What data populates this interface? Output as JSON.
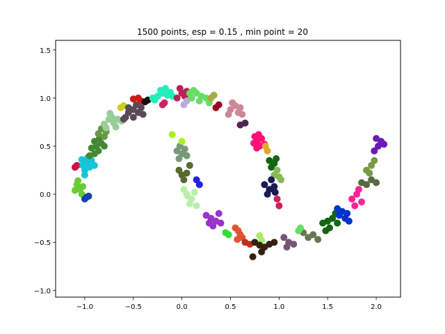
{
  "chart_data": {
    "type": "scatter",
    "title": "1500 points, esp = 0.15 , min point = 20",
    "xlabel": "",
    "ylabel": "",
    "xlim": [
      -1.3,
      2.25
    ],
    "ylim": [
      -1.07,
      1.6
    ],
    "xticks": [
      -1.0,
      -0.5,
      0.0,
      0.5,
      1.0,
      1.5,
      2.0
    ],
    "yticks": [
      -1.0,
      -0.5,
      0.0,
      0.5,
      1.0,
      1.5
    ],
    "xtick_labels": [
      "−1.0",
      "−0.5",
      "0.0",
      "0.5",
      "1.0",
      "1.5",
      "2.0"
    ],
    "ytick_labels": [
      "−1.0",
      "−0.5",
      "0.0",
      "0.5",
      "1.0",
      "1.5"
    ],
    "grid": false,
    "legend": "none",
    "clusters": [
      {
        "color": "#66cc33",
        "points": [
          [
            -1.1,
            0.04
          ],
          [
            -1.08,
            0.1
          ],
          [
            -1.05,
            0.05
          ],
          [
            -1.03,
            0.0
          ],
          [
            -1.07,
            0.14
          ],
          [
            -1.02,
            0.08
          ]
        ]
      },
      {
        "color": "#1144aa",
        "points": [
          [
            -1.0,
            -0.05
          ],
          [
            -0.98,
            -0.03
          ],
          [
            -0.96,
            -0.02
          ]
        ]
      },
      {
        "color": "#cc1144",
        "points": [
          [
            -1.1,
            0.28
          ],
          [
            -1.08,
            0.3
          ]
        ]
      },
      {
        "color": "#17c4d8",
        "points": [
          [
            -1.02,
            0.3
          ],
          [
            -1.0,
            0.25
          ],
          [
            -0.98,
            0.33
          ],
          [
            -0.95,
            0.28
          ],
          [
            -1.0,
            0.2
          ],
          [
            -0.93,
            0.35
          ],
          [
            -0.97,
            0.38
          ],
          [
            -1.03,
            0.36
          ],
          [
            -0.9,
            0.3
          ]
        ]
      },
      {
        "color": "#448833",
        "points": [
          [
            -0.93,
            0.48
          ],
          [
            -0.9,
            0.55
          ],
          [
            -0.88,
            0.5
          ],
          [
            -0.85,
            0.58
          ],
          [
            -0.83,
            0.53
          ],
          [
            -0.86,
            0.45
          ],
          [
            -0.9,
            0.42
          ],
          [
            -0.8,
            0.5
          ],
          [
            -0.95,
            0.4
          ]
        ]
      },
      {
        "color": "#669944",
        "points": [
          [
            -0.86,
            0.63
          ],
          [
            -0.8,
            0.6
          ],
          [
            -0.78,
            0.65
          ],
          [
            -0.83,
            0.68
          ]
        ]
      },
      {
        "color": "#99cc99",
        "points": [
          [
            -0.8,
            0.73
          ],
          [
            -0.75,
            0.78
          ],
          [
            -0.7,
            0.74
          ],
          [
            -0.72,
            0.8
          ],
          [
            -0.66,
            0.78
          ],
          [
            -0.78,
            0.69
          ],
          [
            -0.68,
            0.7
          ],
          [
            -0.74,
            0.84
          ],
          [
            -0.62,
            0.76
          ]
        ]
      },
      {
        "color": "#cccc22",
        "points": [
          [
            -0.63,
            0.9
          ],
          [
            -0.6,
            0.92
          ]
        ]
      },
      {
        "color": "#5a4a55",
        "points": [
          [
            -0.58,
            0.8
          ],
          [
            -0.55,
            0.85
          ],
          [
            -0.5,
            0.88
          ],
          [
            -0.45,
            0.85
          ],
          [
            -0.5,
            0.8
          ],
          [
            -0.42,
            0.9
          ],
          [
            -0.55,
            0.9
          ],
          [
            -0.47,
            0.93
          ],
          [
            -0.4,
            0.83
          ],
          [
            -0.6,
            0.78
          ]
        ]
      },
      {
        "color": "#cc1a1a",
        "points": [
          [
            -0.5,
            0.99
          ],
          [
            -0.45,
            1.0
          ],
          [
            -0.42,
            0.97
          ]
        ]
      },
      {
        "color": "#111111",
        "points": [
          [
            -0.38,
            0.96
          ],
          [
            -0.35,
            0.98
          ]
        ]
      },
      {
        "color": "#cc2266",
        "points": [
          [
            -0.2,
            0.93
          ],
          [
            -0.18,
            0.95
          ]
        ]
      },
      {
        "color": "#22eebb",
        "points": [
          [
            -0.28,
            0.98
          ],
          [
            -0.25,
            1.02
          ],
          [
            -0.2,
            1.05
          ],
          [
            -0.15,
            1.03
          ],
          [
            -0.22,
            1.08
          ],
          [
            -0.17,
            1.1
          ],
          [
            -0.12,
            1.06
          ],
          [
            -0.3,
            1.0
          ],
          [
            -0.1,
            1.02
          ]
        ]
      },
      {
        "color": "#bb2255",
        "points": [
          [
            -0.05,
            1.0
          ],
          [
            0.0,
            1.05
          ],
          [
            0.03,
            1.02
          ],
          [
            -0.02,
            1.1
          ],
          [
            0.05,
            1.07
          ]
        ]
      },
      {
        "color": "#bbaadd",
        "points": [
          [
            0.02,
            0.93
          ],
          [
            0.05,
            0.97
          ]
        ]
      },
      {
        "color": "#66dd66",
        "points": [
          [
            0.1,
            1.0
          ],
          [
            0.15,
            1.05
          ],
          [
            0.2,
            1.02
          ],
          [
            0.25,
            1.0
          ],
          [
            0.18,
            0.97
          ],
          [
            0.12,
            1.08
          ],
          [
            0.28,
            0.95
          ],
          [
            0.08,
            1.05
          ]
        ]
      },
      {
        "color": "#990022",
        "points": [
          [
            0.35,
            0.9
          ],
          [
            0.38,
            0.93
          ]
        ]
      },
      {
        "color": "#aaaa44",
        "points": [
          [
            0.3,
            1.0
          ],
          [
            0.33,
            1.03
          ]
        ]
      },
      {
        "color": "#cc8899",
        "points": [
          [
            0.5,
            0.88
          ],
          [
            0.55,
            0.92
          ],
          [
            0.6,
            0.9
          ],
          [
            0.58,
            0.85
          ],
          [
            0.52,
            0.95
          ],
          [
            0.62,
            0.83
          ],
          [
            0.48,
            0.83
          ]
        ]
      },
      {
        "color": "#552255",
        "points": [
          [
            0.6,
            0.72
          ],
          [
            0.65,
            0.74
          ]
        ]
      },
      {
        "color": "#ff1177",
        "points": [
          [
            0.75,
            0.6
          ],
          [
            0.78,
            0.55
          ],
          [
            0.8,
            0.5
          ],
          [
            0.82,
            0.58
          ],
          [
            0.77,
            0.48
          ],
          [
            0.74,
            0.53
          ],
          [
            0.85,
            0.52
          ],
          [
            0.79,
            0.62
          ]
        ]
      },
      {
        "color": "#ddaa33",
        "points": [
          [
            0.86,
            0.5
          ],
          [
            0.88,
            0.45
          ]
        ]
      },
      {
        "color": "#116611",
        "points": [
          [
            0.9,
            0.35
          ],
          [
            0.95,
            0.32
          ],
          [
            0.92,
            0.28
          ],
          [
            0.97,
            0.37
          ]
        ]
      },
      {
        "color": "#88bb55",
        "points": [
          [
            0.95,
            0.2
          ],
          [
            1.0,
            0.18
          ],
          [
            0.98,
            0.25
          ],
          [
            1.02,
            0.15
          ]
        ]
      },
      {
        "color": "#1a1a55",
        "points": [
          [
            0.85,
            0.1
          ],
          [
            0.9,
            0.05
          ],
          [
            0.95,
            0.08
          ],
          [
            0.92,
            0.15
          ],
          [
            0.88,
            0.0
          ],
          [
            0.96,
            0.02
          ]
        ]
      },
      {
        "color": "#cc2255",
        "points": [
          [
            0.98,
            -0.05
          ],
          [
            1.0,
            -0.12
          ]
        ]
      },
      {
        "color": "#77997a",
        "points": [
          [
            -0.05,
            0.45
          ],
          [
            -0.02,
            0.5
          ],
          [
            0.0,
            0.42
          ],
          [
            0.03,
            0.47
          ],
          [
            -0.03,
            0.37
          ],
          [
            0.05,
            0.4
          ]
        ]
      },
      {
        "color": "#aaee22",
        "points": [
          [
            -0.1,
            0.62
          ],
          [
            0.0,
            0.55
          ]
        ]
      },
      {
        "color": "#556b2f",
        "points": [
          [
            -0.03,
            0.25
          ],
          [
            0.0,
            0.2
          ],
          [
            0.05,
            0.22
          ],
          [
            0.02,
            0.15
          ],
          [
            0.08,
            0.3
          ]
        ]
      },
      {
        "color": "#2222dd",
        "points": [
          [
            0.15,
            0.15
          ],
          [
            0.18,
            0.1
          ]
        ]
      },
      {
        "color": "#bbeeaa",
        "points": [
          [
            0.02,
            0.05
          ],
          [
            0.05,
            0.0
          ],
          [
            0.1,
            -0.05
          ],
          [
            0.08,
            -0.1
          ],
          [
            0.13,
            0.02
          ],
          [
            0.15,
            -0.12
          ],
          [
            0.06,
            -0.02
          ]
        ]
      },
      {
        "color": "#9933cc",
        "points": [
          [
            0.25,
            -0.22
          ],
          [
            0.3,
            -0.25
          ],
          [
            0.35,
            -0.28
          ],
          [
            0.4,
            -0.3
          ],
          [
            0.32,
            -0.33
          ],
          [
            0.38,
            -0.2
          ],
          [
            0.28,
            -0.3
          ]
        ]
      },
      {
        "color": "#33dd33",
        "points": [
          [
            0.45,
            -0.4
          ],
          [
            0.48,
            -0.42
          ]
        ]
      },
      {
        "color": "#dd5533",
        "points": [
          [
            0.55,
            -0.35
          ],
          [
            0.58,
            -0.38
          ],
          [
            0.6,
            -0.42
          ],
          [
            0.62,
            -0.45
          ],
          [
            0.57,
            -0.47
          ]
        ]
      },
      {
        "color": "#bb3322",
        "points": [
          [
            0.65,
            -0.5
          ],
          [
            0.7,
            -0.52
          ]
        ]
      },
      {
        "color": "#aaee66",
        "points": [
          [
            0.8,
            -0.43
          ],
          [
            0.82,
            -0.48
          ]
        ]
      },
      {
        "color": "#332211",
        "points": [
          [
            0.75,
            -0.5
          ],
          [
            0.8,
            -0.53
          ],
          [
            0.85,
            -0.55
          ],
          [
            0.9,
            -0.52
          ],
          [
            0.95,
            -0.5
          ],
          [
            0.82,
            -0.6
          ],
          [
            0.73,
            -0.65
          ]
        ]
      },
      {
        "color": "#775577",
        "points": [
          [
            1.05,
            -0.45
          ],
          [
            1.1,
            -0.5
          ],
          [
            1.15,
            -0.52
          ],
          [
            1.08,
            -0.55
          ]
        ]
      },
      {
        "color": "#667755",
        "points": [
          [
            1.25,
            -0.4
          ],
          [
            1.3,
            -0.45
          ],
          [
            1.35,
            -0.42
          ],
          [
            1.4,
            -0.47
          ]
        ]
      },
      {
        "color": "#66dd66",
        "points": [
          [
            1.2,
            -0.38
          ],
          [
            1.22,
            -0.35
          ]
        ]
      },
      {
        "color": "#116611",
        "points": [
          [
            1.45,
            -0.3
          ],
          [
            1.5,
            -0.28
          ],
          [
            1.55,
            -0.25
          ],
          [
            1.6,
            -0.3
          ],
          [
            1.52,
            -0.35
          ],
          [
            1.58,
            -0.2
          ],
          [
            1.48,
            -0.38
          ]
        ]
      },
      {
        "color": "#0033cc",
        "points": [
          [
            1.6,
            -0.15
          ],
          [
            1.65,
            -0.18
          ],
          [
            1.7,
            -0.2
          ],
          [
            1.68,
            -0.25
          ],
          [
            1.62,
            -0.22
          ],
          [
            1.72,
            -0.28
          ]
        ]
      },
      {
        "color": "#ff2299",
        "points": [
          [
            1.75,
            -0.05
          ],
          [
            1.8,
            0.0
          ],
          [
            1.85,
            -0.08
          ],
          [
            1.82,
            0.05
          ],
          [
            1.78,
            -0.12
          ]
        ]
      },
      {
        "color": "#556b3f",
        "points": [
          [
            1.85,
            0.12
          ],
          [
            1.9,
            0.1
          ],
          [
            1.95,
            0.15
          ],
          [
            2.0,
            0.12
          ]
        ]
      },
      {
        "color": "#779944",
        "points": [
          [
            1.9,
            0.25
          ],
          [
            1.95,
            0.3
          ],
          [
            1.98,
            0.35
          ],
          [
            1.93,
            0.22
          ]
        ]
      },
      {
        "color": "#6a1ab8",
        "points": [
          [
            1.98,
            0.45
          ],
          [
            2.02,
            0.5
          ],
          [
            2.05,
            0.55
          ],
          [
            2.08,
            0.52
          ],
          [
            2.0,
            0.58
          ]
        ]
      }
    ]
  }
}
